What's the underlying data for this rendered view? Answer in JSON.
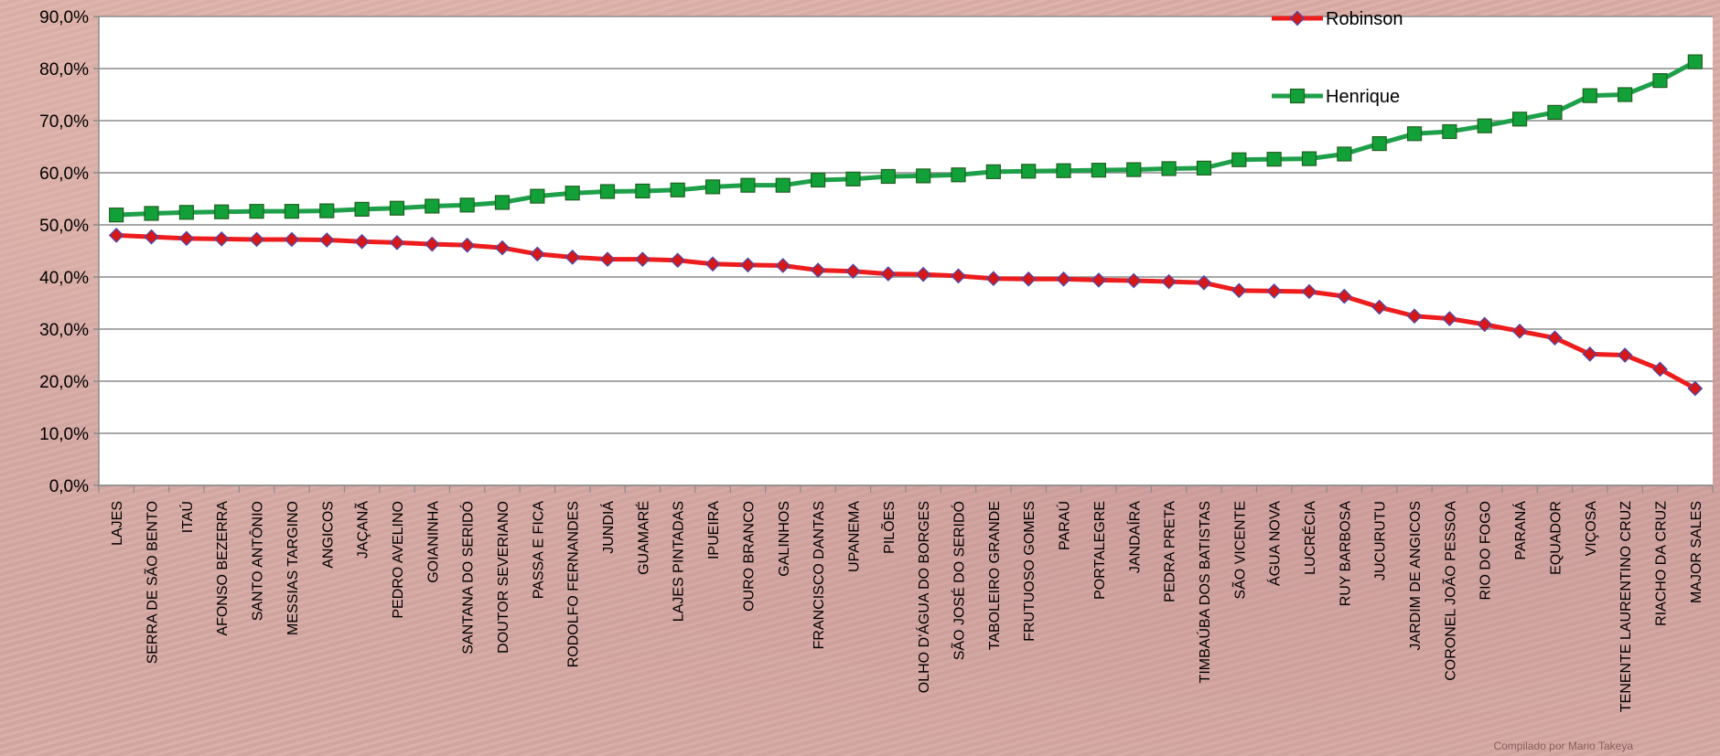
{
  "credit": "Compilado por Mario Takeya",
  "colors": {
    "robinson_line": "#ee1c1c",
    "robinson_marker": "#d61818",
    "robinson_marker_border": "#4a4ab0",
    "henrique_line": "#1ea04a",
    "henrique_marker": "#12a038",
    "henrique_marker_border": "#206020",
    "plot_background": "#ffffff",
    "gridline": "#8c8c8c"
  },
  "chart_data": {
    "type": "line",
    "title": "",
    "xlabel": "",
    "ylabel": "",
    "ylim": [
      0,
      90
    ],
    "yticks": [
      "0,0%",
      "10,0%",
      "20,0%",
      "30,0%",
      "40,0%",
      "50,0%",
      "60,0%",
      "70,0%",
      "80,0%",
      "90,0%"
    ],
    "grid": true,
    "legend": "top-right",
    "categories": [
      "LAJES",
      "SERRA DE SÃO BENTO",
      "ITAÚ",
      "AFONSO BEZERRA",
      "SANTO ANTÔNIO",
      "MESSIAS TARGINO",
      "ANGICOS",
      "JAÇANÃ",
      "PEDRO AVELINO",
      "GOIANINHA",
      "SANTANA DO SERIDÓ",
      "DOUTOR SEVERIANO",
      "PASSA E FICA",
      "RODOLFO FERNANDES",
      "JUNDIÁ",
      "GUAMARÉ",
      "LAJES PINTADAS",
      "IPUEIRA",
      "OURO BRANCO",
      "GALINHOS",
      "FRANCISCO DANTAS",
      "UPANEMA",
      "PILÕES",
      "OLHO D'ÁGUA DO BORGES",
      "SÃO JOSÉ DO SERIDÓ",
      "TABOLEIRO GRANDE",
      "FRUTUOSO GOMES",
      "PARAÚ",
      "PORTALEGRE",
      "JANDAÍRA",
      "PEDRA PRETA",
      "TIMBAÚBA DOS BATISTAS",
      "SÃO VICENTE",
      "ÁGUA NOVA",
      "LUCRÉCIA",
      "RUY BARBOSA",
      "JUCURUTU",
      "JARDIM DE ANGICOS",
      "CORONEL JOÃO PESSOA",
      "RIO DO FOGO",
      "PARANÁ",
      "EQUADOR",
      "VIÇOSA",
      "TENENTE LAURENTINO CRUZ",
      "RIACHO DA CRUZ",
      "MAJOR SALES"
    ],
    "series": [
      {
        "name": "Robinson",
        "values": [
          48.0,
          47.7,
          47.4,
          47.3,
          47.2,
          47.2,
          47.1,
          46.8,
          46.6,
          46.3,
          46.1,
          45.6,
          44.4,
          43.8,
          43.4,
          43.4,
          43.2,
          42.5,
          42.3,
          42.2,
          41.3,
          41.1,
          40.6,
          40.5,
          40.2,
          39.7,
          39.6,
          39.6,
          39.4,
          39.3,
          39.1,
          38.9,
          37.4,
          37.3,
          37.2,
          36.3,
          34.2,
          32.5,
          32.0,
          30.9,
          29.6,
          28.3,
          25.2,
          25.0,
          22.3,
          18.6
        ]
      },
      {
        "name": "Henrique",
        "values": [
          51.9,
          52.2,
          52.4,
          52.5,
          52.6,
          52.6,
          52.7,
          53.0,
          53.2,
          53.6,
          53.8,
          54.3,
          55.5,
          56.1,
          56.4,
          56.5,
          56.7,
          57.3,
          57.6,
          57.6,
          58.6,
          58.8,
          59.3,
          59.4,
          59.6,
          60.2,
          60.3,
          60.4,
          60.5,
          60.6,
          60.8,
          60.9,
          62.5,
          62.6,
          62.7,
          63.6,
          65.6,
          67.5,
          67.9,
          69.0,
          70.3,
          71.6,
          74.8,
          75.0,
          77.7,
          81.3
        ]
      }
    ]
  }
}
